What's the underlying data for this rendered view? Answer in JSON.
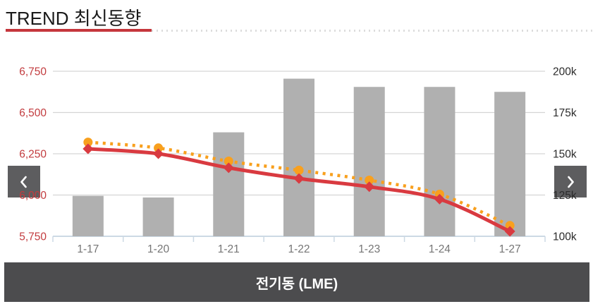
{
  "header": {
    "title": "TREND 최신동향"
  },
  "nav": {
    "prev_icon": "chevron-left",
    "next_icon": "chevron-right"
  },
  "footer": {
    "series_label": "전기동 (LME)"
  },
  "colors": {
    "title_text": "#1a1a1a",
    "header_rule_red": "#c5363c",
    "header_rule_dots": "#dcdcdc",
    "bar": "#b0b0b0",
    "red_line": "#d93a40",
    "orange_line": "#f8a01e",
    "gridline": "#d5d5d5",
    "axis_line": "#ccd9e4",
    "left_axis_text": "#c23b3e",
    "right_axis_text": "#2b2b2b",
    "x_axis_text": "#757575",
    "nav_button_bg": "#5d5d5f",
    "banner_bg": "#4c4c4e",
    "banner_text": "#ffffff"
  },
  "chart_data": {
    "type": "bar",
    "subtype": "combo bar + two lines",
    "categories": [
      "1-17",
      "1-20",
      "1-21",
      "1-22",
      "1-23",
      "1-24",
      "1-27"
    ],
    "series": [
      {
        "name": "gray-bars",
        "type": "bar",
        "axis": "right",
        "color": "#b0b0b0",
        "value_unit": "k",
        "values": [
          124.5,
          123.5,
          163,
          195.5,
          190.5,
          190.5,
          187.5
        ]
      },
      {
        "name": "orange-dotted-line",
        "type": "line",
        "style": "dotted",
        "marker": "circle",
        "axis": "left",
        "color": "#f8a01e",
        "values": [
          6320,
          6285,
          6205,
          6150,
          6090,
          6005,
          5815
        ]
      },
      {
        "name": "red-solid-line",
        "type": "line",
        "style": "solid",
        "marker": "diamond",
        "axis": "left",
        "color": "#d93a40",
        "values": [
          6280,
          6250,
          6165,
          6100,
          6050,
          5975,
          5780
        ]
      }
    ],
    "left_axis": {
      "tick_labels": [
        "6,750",
        "6,500",
        "6,250",
        "6,000",
        "5,750"
      ],
      "tick_values": [
        6750,
        6500,
        6250,
        6000,
        5750
      ],
      "range": [
        5750,
        6750
      ]
    },
    "right_axis": {
      "tick_labels": [
        "200k",
        "175k",
        "150k",
        "125k",
        "100k"
      ],
      "tick_values": [
        200,
        175,
        150,
        125,
        100
      ],
      "range": [
        100,
        200
      ]
    },
    "title": "",
    "xlabel": "",
    "ylabel": "",
    "grid": true,
    "legend": false
  }
}
